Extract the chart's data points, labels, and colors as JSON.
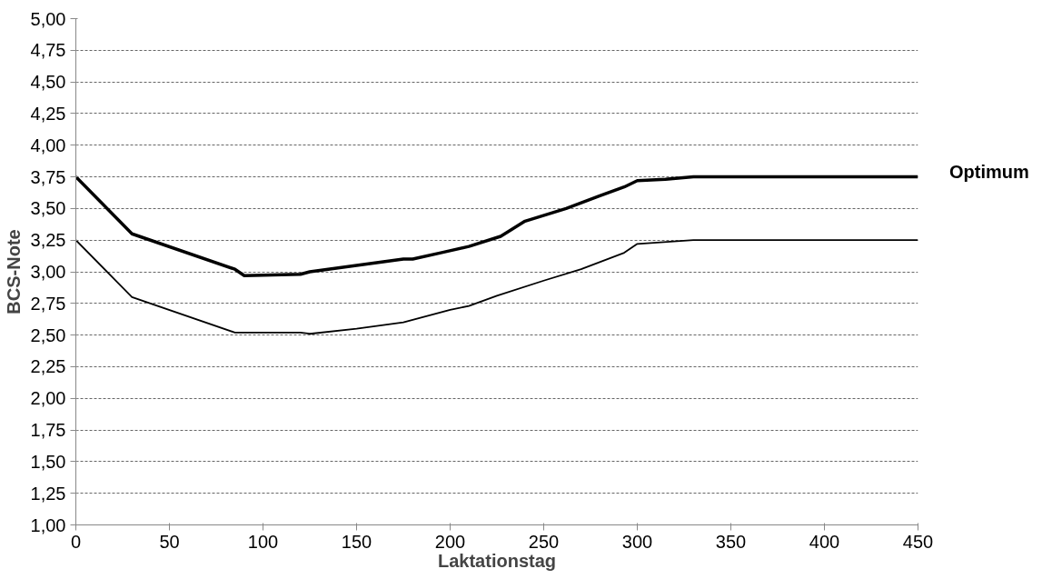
{
  "chart_data": {
    "type": "line",
    "xlabel": "Laktationstag",
    "ylabel": "BCS-Note",
    "xlim": [
      0,
      450
    ],
    "xticks": [
      0,
      50,
      100,
      150,
      200,
      250,
      300,
      350,
      400,
      450
    ],
    "ylim": [
      1,
      5
    ],
    "yticks": [
      {
        "value": 1,
        "label": "1,00"
      },
      {
        "value": 1.25,
        "label": "1,25"
      },
      {
        "value": 1.5,
        "label": "1,50"
      },
      {
        "value": 1.75,
        "label": "1,75"
      },
      {
        "value": 2,
        "label": "2,00"
      },
      {
        "value": 2.25,
        "label": "2,25"
      },
      {
        "value": 2.5,
        "label": "2,50"
      },
      {
        "value": 2.75,
        "label": "2,75"
      },
      {
        "value": 3,
        "label": "3,00"
      },
      {
        "value": 3.25,
        "label": "3,25"
      },
      {
        "value": 3.5,
        "label": "3,50"
      },
      {
        "value": 3.75,
        "label": "3,75"
      },
      {
        "value": 4,
        "label": "4,00"
      },
      {
        "value": 4.25,
        "label": "4,25"
      },
      {
        "value": 4.5,
        "label": "4,50"
      },
      {
        "value": 4.75,
        "label": "4,75"
      },
      {
        "value": 5,
        "label": "5,00"
      }
    ],
    "grid": "y",
    "line_style": "solid",
    "annotations": [
      "Optimum"
    ],
    "series": [
      {
        "color": "#000000",
        "x": [
          0,
          30,
          85,
          90,
          120,
          125,
          150,
          175,
          180,
          195,
          210,
          227,
          240,
          262,
          280,
          293,
          300,
          315,
          330,
          450
        ],
        "values": [
          3.75,
          3.3,
          3.02,
          2.97,
          2.98,
          3.0,
          3.05,
          3.1,
          3.1,
          3.15,
          3.2,
          3.28,
          3.4,
          3.5,
          3.6,
          3.67,
          3.72,
          3.73,
          3.75,
          3.75
        ]
      },
      {
        "color": "#000000",
        "x": [
          0,
          30,
          85,
          120,
          125,
          150,
          175,
          200,
          210,
          225,
          250,
          270,
          293,
          300,
          330,
          450
        ],
        "values": [
          3.25,
          2.8,
          2.52,
          2.52,
          2.51,
          2.55,
          2.6,
          2.7,
          2.73,
          2.81,
          2.93,
          3.02,
          3.15,
          3.22,
          3.25,
          3.25
        ]
      }
    ]
  }
}
